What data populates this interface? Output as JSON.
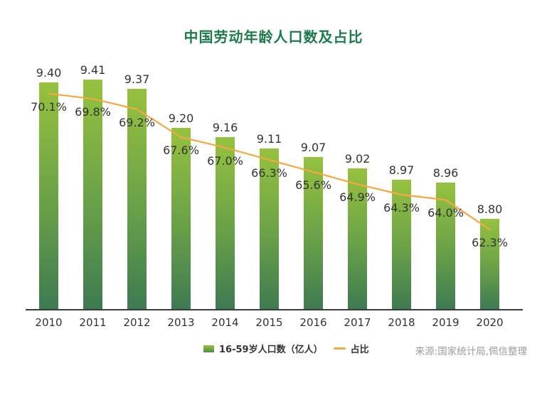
{
  "title": {
    "text": "中国劳动年龄人口数及占比"
  },
  "chart_data": {
    "type": "bar",
    "title": "中国劳动年龄人口数及占比",
    "xlabel": "",
    "ylabel": "",
    "categories": [
      "2010",
      "2011",
      "2012",
      "2013",
      "2014",
      "2015",
      "2016",
      "2017",
      "2018",
      "2019",
      "2020"
    ],
    "series": [
      {
        "name": "16-59岁人口数（亿人）",
        "type": "bar",
        "values": [
          9.4,
          9.41,
          9.37,
          9.2,
          9.16,
          9.11,
          9.07,
          9.02,
          8.97,
          8.96,
          8.8
        ],
        "labels": [
          "9.40",
          "9.41",
          "9.37",
          "9.20",
          "9.16",
          "9.11",
          "9.07",
          "9.02",
          "8.97",
          "8.96",
          "8.80"
        ],
        "color_top": "#96c23f",
        "color_bottom": "#3e7a52"
      },
      {
        "name": "占比",
        "type": "line",
        "values": [
          70.1,
          69.8,
          69.2,
          67.6,
          67.0,
          66.3,
          65.6,
          64.9,
          64.3,
          64.0,
          62.3
        ],
        "labels": [
          "70.1%",
          "69.8%",
          "69.2%",
          "67.6%",
          "67.0%",
          "66.3%",
          "65.6%",
          "64.9%",
          "64.3%",
          "64.0%",
          "62.3%"
        ],
        "color": "#f5a83f"
      }
    ],
    "ylim": [
      8.4,
      9.48
    ],
    "y2lim": [
      57.7,
      71.8
    ],
    "grid": false,
    "legend_position": "bottom"
  },
  "source": {
    "text": "来源:国家统计局,佩信整理"
  },
  "colors": {
    "title": "#1e7a4b",
    "text": "#333333",
    "axis": "#3c3c3c",
    "bar_top": "#96c23f",
    "bar_bottom": "#3e7a52",
    "line": "#f5a83f",
    "source": "#9b9b9b"
  }
}
